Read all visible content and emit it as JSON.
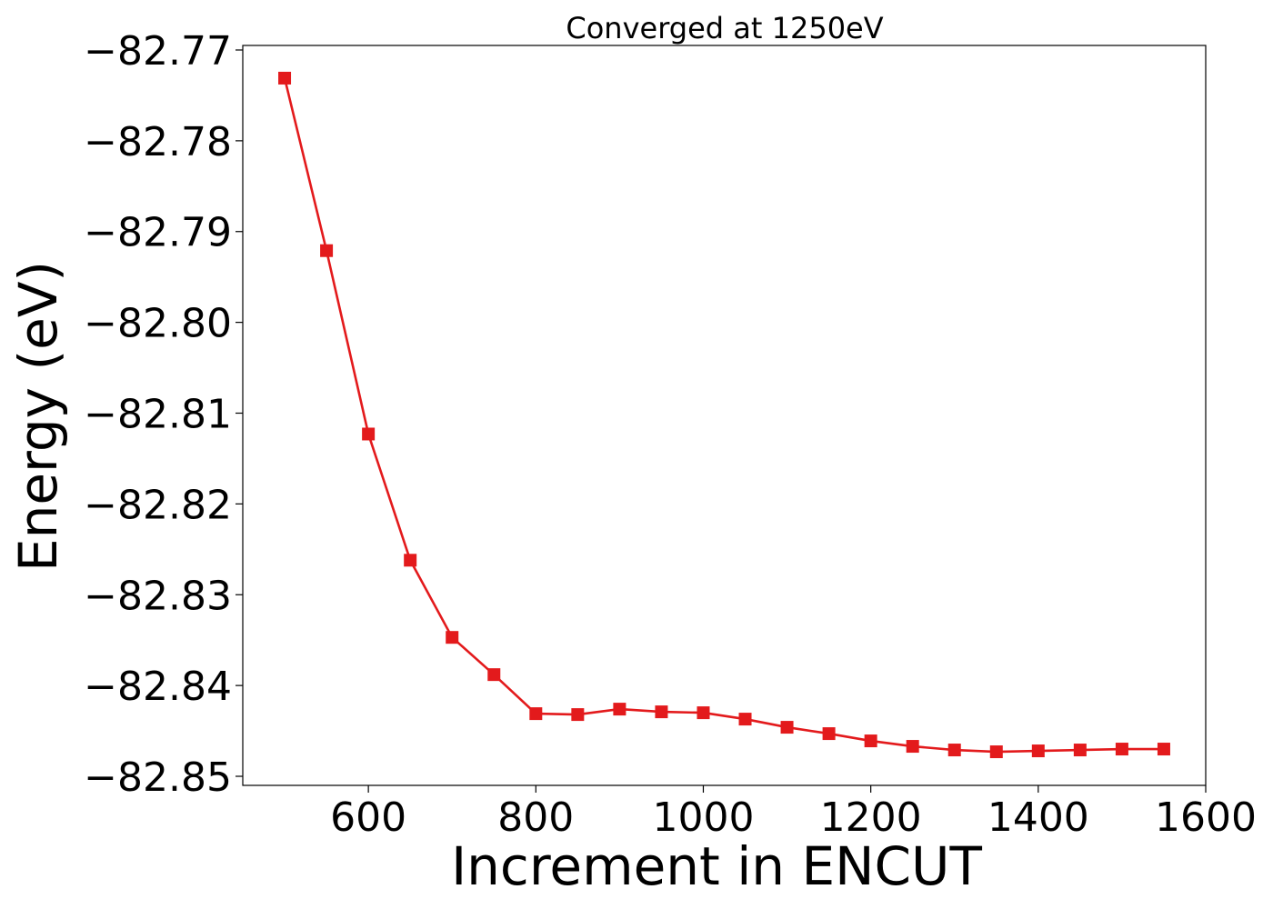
{
  "chart_data": {
    "type": "line",
    "title": "Converged at 1250eV",
    "xlabel": "Increment in ENCUT",
    "ylabel": "Energy (eV)",
    "xlim": [
      450,
      1600
    ],
    "ylim": [
      -82.851,
      -82.7695
    ],
    "x_ticks": [
      600,
      800,
      1000,
      1200,
      1400,
      1600
    ],
    "x_tick_labels": [
      "600",
      "800",
      "1000",
      "1200",
      "1400",
      "1600"
    ],
    "y_ticks": [
      -82.77,
      -82.78,
      -82.79,
      -82.8,
      -82.81,
      -82.82,
      -82.83,
      -82.84,
      -82.85
    ],
    "y_tick_labels": [
      "−82.77",
      "−82.78",
      "−82.79",
      "−82.80",
      "−82.81",
      "−82.82",
      "−82.83",
      "−82.84",
      "−82.85"
    ],
    "grid": false,
    "legend": "none",
    "series": [
      {
        "color": "#e31a1c",
        "marker": "square",
        "x": [
          500,
          550,
          600,
          650,
          700,
          750,
          800,
          850,
          900,
          950,
          1000,
          1050,
          1100,
          1150,
          1200,
          1250,
          1300,
          1350,
          1400,
          1450,
          1500,
          1550
        ],
        "y": [
          -82.7731,
          -82.7921,
          -82.8123,
          -82.8262,
          -82.8347,
          -82.8388,
          -82.8431,
          -82.8432,
          -82.8426,
          -82.8429,
          -82.843,
          -82.8437,
          -82.8446,
          -82.8453,
          -82.8461,
          -82.8467,
          -82.8471,
          -82.8473,
          -82.8472,
          -82.8471,
          -82.847,
          -82.847
        ]
      }
    ]
  }
}
